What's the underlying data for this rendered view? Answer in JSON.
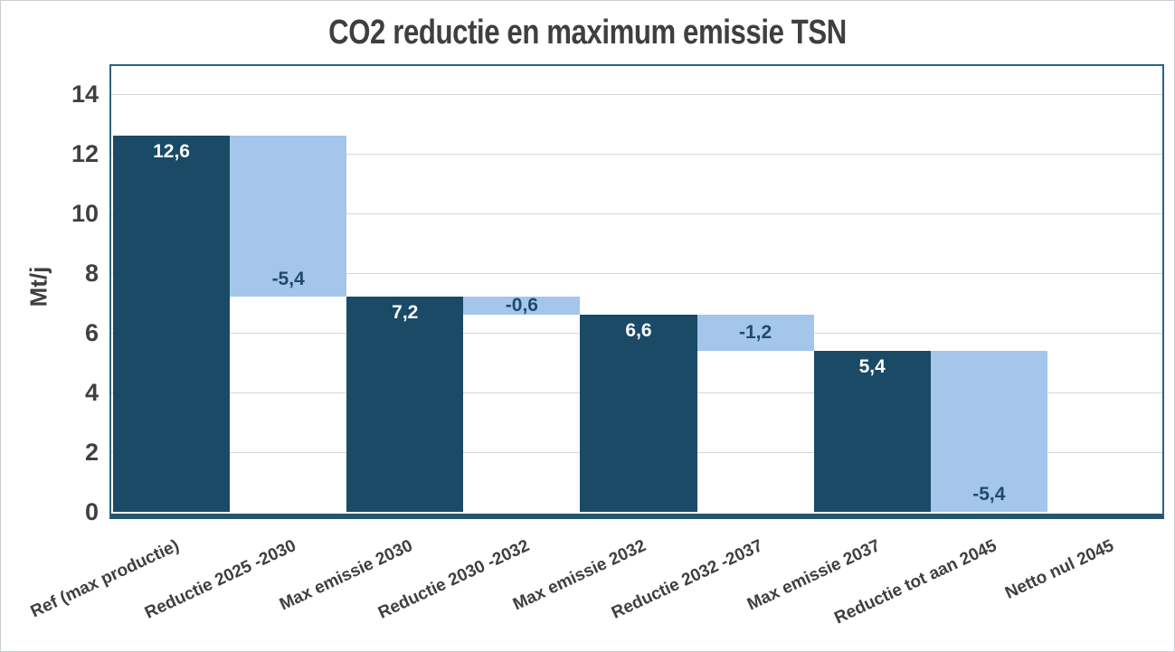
{
  "chart_data": {
    "type": "bar",
    "subtype": "waterfall",
    "title": "CO2 reductie en maximum emissie TSN",
    "xlabel": "",
    "ylabel": "Mt/j",
    "ylim": [
      0,
      15
    ],
    "yticks": [
      0,
      2,
      4,
      6,
      8,
      10,
      12,
      14
    ],
    "grid": true,
    "legend": false,
    "categories": [
      "Ref (max productie)",
      "Reductie 2025 -2030",
      "Max emissie 2030",
      "Reductie 2030 -2032",
      "Max emissie 2032",
      "Reductie 2032 -2037",
      "Max emissie 2037",
      "Reductie tot aan 2045",
      "Netto nul 2045"
    ],
    "bars": [
      {
        "category": "Ref (max productie)",
        "value": 12.6,
        "label": "12,6",
        "from": 0,
        "to": 12.6,
        "role": "total",
        "label_pos": "inside-top"
      },
      {
        "category": "Reductie 2025 -2030",
        "value": -5.4,
        "label": "-5,4",
        "from": 7.2,
        "to": 12.6,
        "role": "delta",
        "label_pos": "inside-bottom"
      },
      {
        "category": "Max emissie 2030",
        "value": 7.2,
        "label": "7,2",
        "from": 0,
        "to": 7.2,
        "role": "total",
        "label_pos": "inside-top"
      },
      {
        "category": "Reductie 2030 -2032",
        "value": -0.6,
        "label": "-0,6",
        "from": 6.6,
        "to": 7.2,
        "role": "delta",
        "label_pos": "center"
      },
      {
        "category": "Max emissie 2032",
        "value": 6.6,
        "label": "6,6",
        "from": 0,
        "to": 6.6,
        "role": "total",
        "label_pos": "inside-top"
      },
      {
        "category": "Reductie 2032 -2037",
        "value": -1.2,
        "label": "-1,2",
        "from": 5.4,
        "to": 6.6,
        "role": "delta",
        "label_pos": "center"
      },
      {
        "category": "Max emissie 2037",
        "value": 5.4,
        "label": "5,4",
        "from": 0,
        "to": 5.4,
        "role": "total",
        "label_pos": "inside-top"
      },
      {
        "category": "Reductie tot aan 2045",
        "value": -5.4,
        "label": "-5,4",
        "from": 0,
        "to": 5.4,
        "role": "delta",
        "label_pos": "inside-bottom"
      },
      {
        "category": "Netto nul 2045",
        "value": 0,
        "label": "",
        "from": 0,
        "to": 0,
        "role": "total",
        "label_pos": "none"
      }
    ],
    "colors": {
      "total_bar": "#1a4a66",
      "delta_bar": "#a3c6ea",
      "label_on_total": "#ffffff",
      "label_on_delta": "#1e4a6d",
      "plot_border": "#2d6285",
      "gridline": "#d6d6d6",
      "axis_text": "#404040",
      "title_text": "#3f3f3f"
    }
  }
}
